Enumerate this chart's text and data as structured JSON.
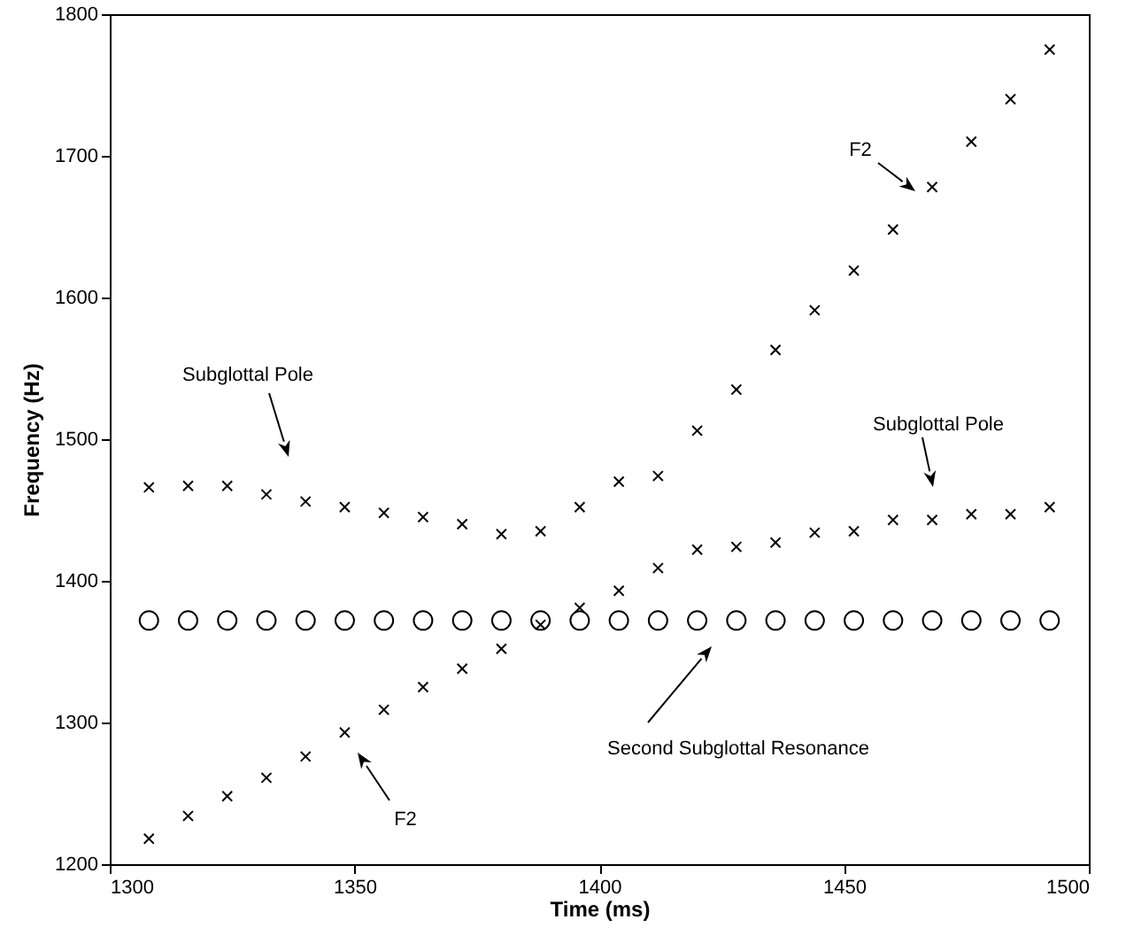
{
  "chart_data": {
    "type": "scatter",
    "xlabel": "Time (ms)",
    "ylabel": "Frequency (Hz)",
    "x": [
      1308,
      1316,
      1324,
      1332,
      1340,
      1348,
      1356,
      1364,
      1372,
      1380,
      1388,
      1396,
      1404,
      1412,
      1420,
      1428,
      1436,
      1444,
      1452,
      1460,
      1468,
      1476,
      1484,
      1492
    ],
    "series": [
      {
        "color": "#000000",
        "marker": "cross",
        "values": [
          1466,
          1467,
          1467,
          1461,
          1456,
          1452,
          1448,
          1445,
          1440,
          1433,
          1435,
          1452,
          1470,
          1474,
          1506,
          1535,
          1563,
          1591,
          1619,
          1648,
          1678,
          1710,
          1740,
          1775
        ]
      },
      {
        "color": "#000000",
        "marker": "cross",
        "values": [
          1218,
          1234,
          1248,
          1261,
          1276,
          1293,
          1309,
          1325,
          1338,
          1352,
          1369,
          1381,
          1393,
          1409,
          1422,
          1424,
          1427,
          1434,
          1435,
          1443,
          1443,
          1447,
          1447,
          1452
        ]
      },
      {
        "color": "#000000",
        "marker": "circle",
        "values": [
          1372,
          1372,
          1372,
          1372,
          1372,
          1372,
          1372,
          1372,
          1372,
          1372,
          1372,
          1372,
          1372,
          1372,
          1372,
          1372,
          1372,
          1372,
          1372,
          1372,
          1372,
          1372,
          1372,
          1372
        ]
      }
    ],
    "xlim": [
      1300,
      1500
    ],
    "xticks": [
      1300,
      1350,
      1400,
      1450,
      1500
    ],
    "ylim": [
      1200,
      1800
    ],
    "yticks": [
      1200,
      1300,
      1400,
      1500,
      1600,
      1700,
      1800
    ],
    "grid": false,
    "annotations": [
      "Subglottal Pole",
      "Subglottal Pole",
      "F2",
      "F2",
      "Second Subglottal Resonance"
    ]
  }
}
